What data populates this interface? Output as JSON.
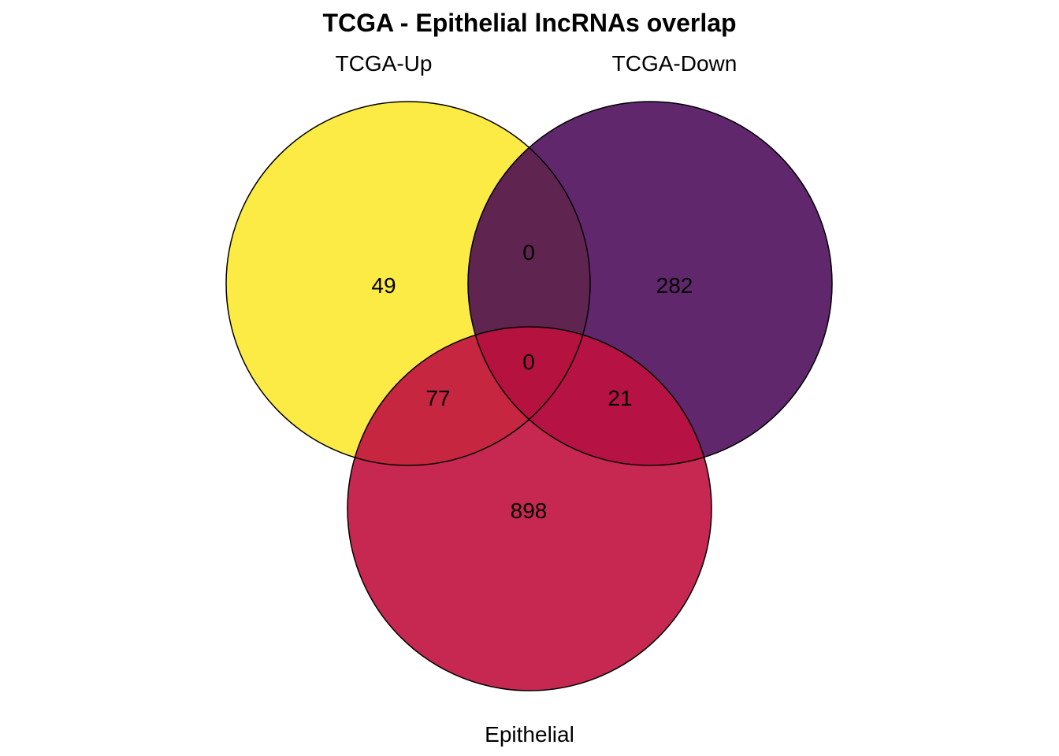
{
  "title": "TCGA - Epithelial lncRNAs overlap",
  "sets": [
    {
      "name": "TCGA-Up",
      "color": "#FDE725",
      "opacity": 0.85
    },
    {
      "name": "TCGA-Down",
      "color": "#440154",
      "opacity": 0.85
    },
    {
      "name": "Epithelial",
      "color": "#C0113E",
      "opacity": 0.9
    }
  ],
  "regions": {
    "up_only": "49",
    "down_only": "282",
    "epithelial_only": "898",
    "up_down": "0",
    "up_epithelial": "77",
    "down_epithelial": "21",
    "all_three": "0"
  }
}
